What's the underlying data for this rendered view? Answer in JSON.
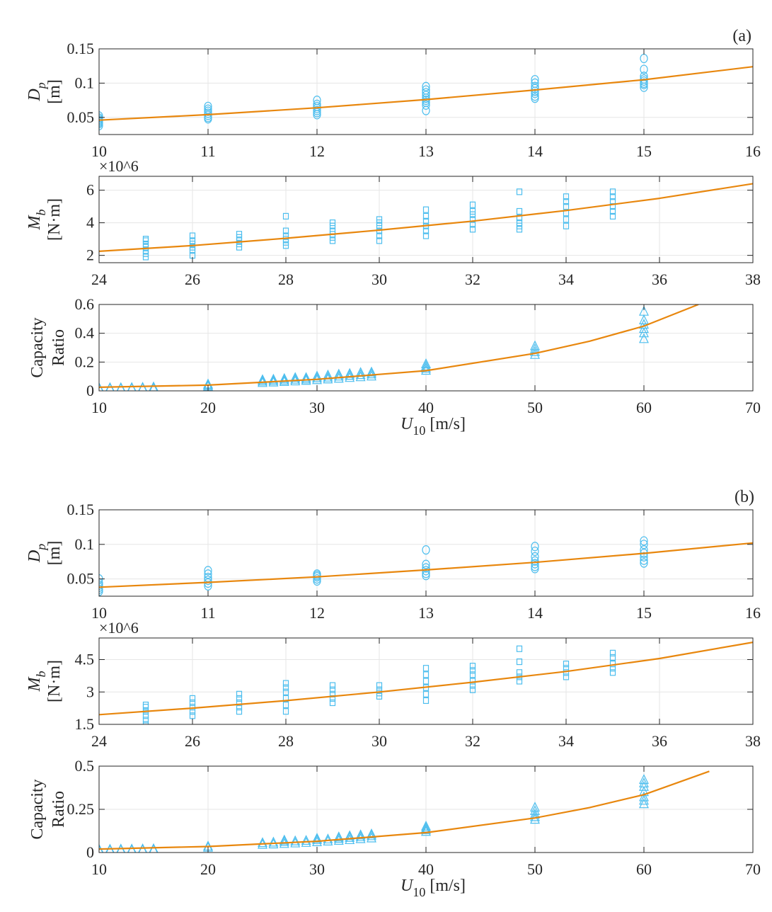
{
  "colors": {
    "marker": "#4DBEEE",
    "fit_line": "#E8870E",
    "axis": "#262626",
    "grid": "#e6e6e6"
  },
  "chart_data": [
    {
      "panel": "(a)",
      "type": "scatter",
      "marker": "circle",
      "ylabel_main": "D",
      "ylabel_sub": "p",
      "ylabel_unit": "[m]",
      "xlim": [
        10,
        16
      ],
      "ylim": [
        0.025,
        0.15
      ],
      "grid": true,
      "xticks": [
        10,
        11,
        12,
        13,
        14,
        15,
        16
      ],
      "yticks": [
        0.05,
        0.1,
        0.15
      ],
      "ytick_labels": [
        "0.05",
        "0.1",
        "0.15"
      ],
      "points": [
        {
          "x": 10,
          "y": [
            0.038,
            0.041,
            0.043,
            0.045,
            0.047,
            0.049,
            0.052
          ]
        },
        {
          "x": 11,
          "y": [
            0.048,
            0.05,
            0.053,
            0.056,
            0.059,
            0.062,
            0.066
          ]
        },
        {
          "x": 12,
          "y": [
            0.054,
            0.057,
            0.06,
            0.063,
            0.066,
            0.069,
            0.075
          ]
        },
        {
          "x": 13,
          "y": [
            0.06,
            0.068,
            0.072,
            0.075,
            0.078,
            0.082,
            0.086,
            0.09,
            0.095
          ]
        },
        {
          "x": 14,
          "y": [
            0.078,
            0.081,
            0.085,
            0.088,
            0.092,
            0.095,
            0.1,
            0.105
          ]
        },
        {
          "x": 15,
          "y": [
            0.094,
            0.098,
            0.1,
            0.103,
            0.106,
            0.11,
            0.12,
            0.136
          ]
        }
      ],
      "fit": {
        "x": [
          10,
          11,
          12,
          13,
          14,
          15,
          16
        ],
        "y": [
          0.046,
          0.054,
          0.064,
          0.076,
          0.09,
          0.105,
          0.124
        ]
      }
    },
    {
      "panel": "(a)",
      "type": "scatter",
      "marker": "square",
      "ylabel_main": "M",
      "ylabel_sub": "b",
      "ylabel_unit": "[N·m]",
      "exponent": "×10^6",
      "xlim": [
        24,
        38
      ],
      "ylim": [
        1.55,
        6.85
      ],
      "grid": true,
      "xticks": [
        24,
        26,
        28,
        30,
        32,
        34,
        36,
        38
      ],
      "yticks": [
        2,
        4,
        6
      ],
      "ytick_labels": [
        "2",
        "4",
        "6"
      ],
      "points": [
        {
          "x": 25,
          "y": [
            1.9,
            2.1,
            2.3,
            2.5,
            2.7,
            2.9,
            3.0
          ]
        },
        {
          "x": 26,
          "y": [
            2.0,
            2.3,
            2.5,
            2.7,
            2.9,
            3.2
          ]
        },
        {
          "x": 27,
          "y": [
            2.5,
            2.7,
            2.9,
            3.1,
            3.3
          ]
        },
        {
          "x": 28,
          "y": [
            2.6,
            2.8,
            3.0,
            3.2,
            3.5,
            4.4
          ]
        },
        {
          "x": 29,
          "y": [
            2.9,
            3.1,
            3.3,
            3.5,
            3.8,
            4.0
          ]
        },
        {
          "x": 30,
          "y": [
            2.9,
            3.2,
            3.5,
            3.8,
            4.0,
            4.2
          ]
        },
        {
          "x": 31,
          "y": [
            3.2,
            3.5,
            3.8,
            4.1,
            4.4,
            4.8
          ]
        },
        {
          "x": 32,
          "y": [
            3.6,
            3.9,
            4.2,
            4.5,
            4.7,
            5.1
          ]
        },
        {
          "x": 33,
          "y": [
            3.6,
            3.8,
            4.0,
            4.3,
            4.7,
            5.9
          ]
        },
        {
          "x": 34,
          "y": [
            3.8,
            4.2,
            4.6,
            5.0,
            5.3,
            5.6
          ]
        },
        {
          "x": 35,
          "y": [
            4.4,
            4.7,
            5.0,
            5.3,
            5.6,
            5.9
          ]
        }
      ],
      "fit": {
        "x": [
          24,
          26,
          28,
          30,
          32,
          34,
          36,
          38
        ],
        "y": [
          2.25,
          2.6,
          3.05,
          3.55,
          4.1,
          4.75,
          5.5,
          6.4
        ]
      }
    },
    {
      "panel": "(a)",
      "type": "scatter",
      "marker": "triangle",
      "ylabel_main": "Capacity",
      "ylabel_line2": "Ratio",
      "xlabel_main": "U",
      "xlabel_sub": "10",
      "xlabel_unit": "[m/s]",
      "xlim": [
        10,
        70
      ],
      "ylim": [
        0,
        0.6
      ],
      "grid": true,
      "xticks": [
        10,
        20,
        30,
        40,
        50,
        60,
        70
      ],
      "yticks": [
        0,
        0.2,
        0.4,
        0.6
      ],
      "ytick_labels": [
        "0",
        "0.2",
        "0.4",
        "0.6"
      ],
      "points": [
        {
          "x": 10,
          "y": [
            0.015,
            0.02
          ]
        },
        {
          "x": 11,
          "y": [
            0.015,
            0.02
          ]
        },
        {
          "x": 12,
          "y": [
            0.015,
            0.02
          ]
        },
        {
          "x": 13,
          "y": [
            0.016,
            0.021
          ]
        },
        {
          "x": 14,
          "y": [
            0.017,
            0.022
          ]
        },
        {
          "x": 15,
          "y": [
            0.015,
            0.025
          ]
        },
        {
          "x": 20,
          "y": [
            0.03,
            0.038,
            0.045
          ]
        },
        {
          "x": 25,
          "y": [
            0.055,
            0.065,
            0.075
          ]
        },
        {
          "x": 26,
          "y": [
            0.058,
            0.068,
            0.078
          ]
        },
        {
          "x": 27,
          "y": [
            0.062,
            0.072,
            0.083
          ]
        },
        {
          "x": 28,
          "y": [
            0.066,
            0.078,
            0.09
          ]
        },
        {
          "x": 29,
          "y": [
            0.07,
            0.08,
            0.09
          ]
        },
        {
          "x": 30,
          "y": [
            0.075,
            0.088,
            0.1
          ]
        },
        {
          "x": 31,
          "y": [
            0.08,
            0.093,
            0.107
          ]
        },
        {
          "x": 32,
          "y": [
            0.085,
            0.1,
            0.113
          ]
        },
        {
          "x": 33,
          "y": [
            0.09,
            0.105,
            0.118
          ]
        },
        {
          "x": 34,
          "y": [
            0.095,
            0.11,
            0.125
          ]
        },
        {
          "x": 35,
          "y": [
            0.1,
            0.115,
            0.128
          ]
        },
        {
          "x": 40,
          "y": [
            0.14,
            0.155,
            0.17,
            0.185
          ]
        },
        {
          "x": 50,
          "y": [
            0.25,
            0.27,
            0.29,
            0.31
          ]
        },
        {
          "x": 60,
          "y": [
            0.36,
            0.4,
            0.43,
            0.46,
            0.49,
            0.55
          ]
        }
      ],
      "fit": {
        "x": [
          10,
          20,
          30,
          40,
          50,
          55,
          60,
          65
        ],
        "y": [
          0.025,
          0.04,
          0.08,
          0.14,
          0.26,
          0.345,
          0.45,
          0.6
        ]
      }
    },
    {
      "panel": "(b)",
      "type": "scatter",
      "marker": "circle",
      "ylabel_main": "D",
      "ylabel_sub": "p",
      "ylabel_unit": "[m]",
      "xlim": [
        10,
        16
      ],
      "ylim": [
        0.025,
        0.15
      ],
      "grid": true,
      "xticks": [
        10,
        11,
        12,
        13,
        14,
        15,
        16
      ],
      "yticks": [
        0.05,
        0.1,
        0.15
      ],
      "ytick_labels": [
        "0.05",
        "0.1",
        "0.15"
      ],
      "points": [
        {
          "x": 10,
          "y": [
            0.032,
            0.035,
            0.038,
            0.041,
            0.044,
            0.05
          ]
        },
        {
          "x": 11,
          "y": [
            0.04,
            0.044,
            0.048,
            0.052,
            0.057,
            0.062
          ]
        },
        {
          "x": 12,
          "y": [
            0.047,
            0.05,
            0.053,
            0.055,
            0.057
          ]
        },
        {
          "x": 13,
          "y": [
            0.055,
            0.058,
            0.062,
            0.066,
            0.071,
            0.092
          ]
        },
        {
          "x": 14,
          "y": [
            0.065,
            0.068,
            0.072,
            0.076,
            0.082,
            0.09,
            0.097
          ]
        },
        {
          "x": 15,
          "y": [
            0.073,
            0.077,
            0.082,
            0.087,
            0.092,
            0.1,
            0.105
          ]
        }
      ],
      "fit": {
        "x": [
          10,
          11,
          12,
          13,
          14,
          15,
          16
        ],
        "y": [
          0.038,
          0.045,
          0.053,
          0.063,
          0.074,
          0.087,
          0.102
        ]
      }
    },
    {
      "panel": "(b)",
      "type": "scatter",
      "marker": "square",
      "ylabel_main": "M",
      "ylabel_sub": "b",
      "ylabel_unit": "[N·m]",
      "exponent": "×10^6",
      "xlim": [
        24,
        38
      ],
      "ylim": [
        1.5,
        5.5
      ],
      "grid": true,
      "xticks": [
        24,
        26,
        28,
        30,
        32,
        34,
        36,
        38
      ],
      "yticks": [
        1.5,
        3,
        4.5
      ],
      "ytick_labels": [
        "1.5",
        "3",
        "4.5"
      ],
      "points": [
        {
          "x": 25,
          "y": [
            1.5,
            1.7,
            1.9,
            2.1,
            2.3,
            2.4
          ]
        },
        {
          "x": 26,
          "y": [
            1.9,
            2.1,
            2.3,
            2.5,
            2.7
          ]
        },
        {
          "x": 27,
          "y": [
            2.1,
            2.3,
            2.5,
            2.7,
            2.9
          ]
        },
        {
          "x": 28,
          "y": [
            2.1,
            2.4,
            2.7,
            3.0,
            3.2,
            3.4
          ]
        },
        {
          "x": 29,
          "y": [
            2.5,
            2.7,
            2.9,
            3.1,
            3.3
          ]
        },
        {
          "x": 30,
          "y": [
            2.8,
            2.95,
            3.1,
            3.3
          ]
        },
        {
          "x": 31,
          "y": [
            2.6,
            2.9,
            3.2,
            3.5,
            3.8,
            4.1
          ]
        },
        {
          "x": 32,
          "y": [
            3.1,
            3.3,
            3.5,
            3.8,
            4.0,
            4.2
          ]
        },
        {
          "x": 33,
          "y": [
            3.5,
            3.7,
            3.9,
            4.4,
            5.0
          ]
        },
        {
          "x": 34,
          "y": [
            3.7,
            3.9,
            4.1,
            4.3
          ]
        },
        {
          "x": 35,
          "y": [
            3.9,
            4.1,
            4.3,
            4.6,
            4.8
          ]
        }
      ],
      "fit": {
        "x": [
          24,
          26,
          28,
          30,
          32,
          34,
          36,
          38
        ],
        "y": [
          1.95,
          2.25,
          2.6,
          3.0,
          3.45,
          3.95,
          4.55,
          5.3
        ]
      }
    },
    {
      "panel": "(b)",
      "type": "scatter",
      "marker": "triangle",
      "ylabel_main": "Capacity",
      "ylabel_line2": "Ratio",
      "xlabel_main": "U",
      "xlabel_sub": "10",
      "xlabel_unit": "[m/s]",
      "xlim": [
        10,
        70
      ],
      "ylim": [
        0,
        0.5
      ],
      "grid": true,
      "xticks": [
        10,
        20,
        30,
        40,
        50,
        60,
        70
      ],
      "yticks": [
        0,
        0.25,
        0.5
      ],
      "ytick_labels": [
        "0",
        "0.25",
        "0.5"
      ],
      "points": [
        {
          "x": 10,
          "y": [
            0.012,
            0.017
          ]
        },
        {
          "x": 11,
          "y": [
            0.012,
            0.017
          ]
        },
        {
          "x": 12,
          "y": [
            0.013,
            0.018
          ]
        },
        {
          "x": 13,
          "y": [
            0.013,
            0.018
          ]
        },
        {
          "x": 14,
          "y": [
            0.014,
            0.019
          ]
        },
        {
          "x": 15,
          "y": [
            0.014,
            0.02
          ]
        },
        {
          "x": 20,
          "y": [
            0.028,
            0.035
          ]
        },
        {
          "x": 25,
          "y": [
            0.045,
            0.055
          ]
        },
        {
          "x": 26,
          "y": [
            0.047,
            0.058
          ]
        },
        {
          "x": 27,
          "y": [
            0.05,
            0.062,
            0.07
          ]
        },
        {
          "x": 28,
          "y": [
            0.053,
            0.065
          ]
        },
        {
          "x": 29,
          "y": [
            0.056,
            0.068
          ]
        },
        {
          "x": 30,
          "y": [
            0.06,
            0.072,
            0.08
          ]
        },
        {
          "x": 31,
          "y": [
            0.064,
            0.076
          ]
        },
        {
          "x": 32,
          "y": [
            0.068,
            0.08,
            0.088
          ]
        },
        {
          "x": 33,
          "y": [
            0.072,
            0.085,
            0.095
          ]
        },
        {
          "x": 34,
          "y": [
            0.078,
            0.09,
            0.1
          ]
        },
        {
          "x": 35,
          "y": [
            0.082,
            0.095,
            0.105
          ]
        },
        {
          "x": 40,
          "y": [
            0.12,
            0.13,
            0.14,
            0.15
          ]
        },
        {
          "x": 50,
          "y": [
            0.19,
            0.205,
            0.22,
            0.24,
            0.26
          ]
        },
        {
          "x": 60,
          "y": [
            0.28,
            0.3,
            0.32,
            0.35,
            0.38,
            0.4,
            0.42
          ]
        }
      ],
      "fit": {
        "x": [
          10,
          20,
          30,
          40,
          50,
          55,
          60,
          66
        ],
        "y": [
          0.02,
          0.035,
          0.065,
          0.115,
          0.2,
          0.26,
          0.335,
          0.47
        ]
      }
    }
  ]
}
